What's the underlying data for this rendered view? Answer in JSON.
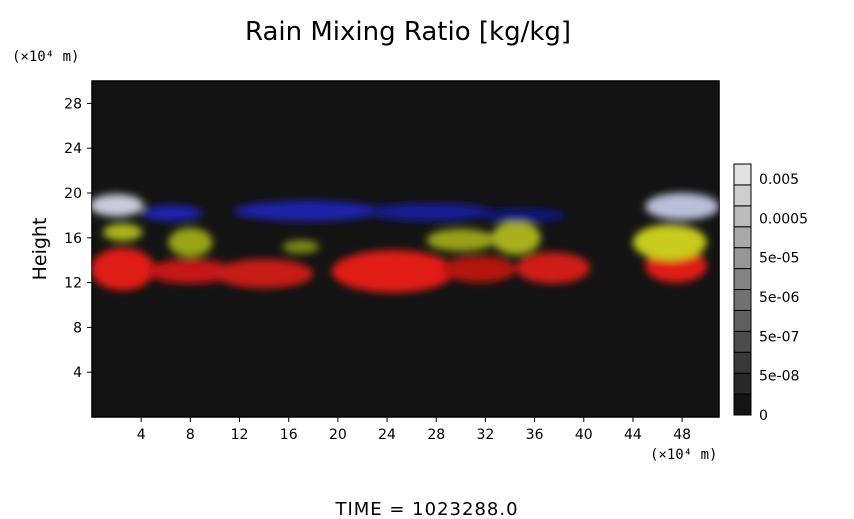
{
  "chart_data": {
    "type": "heatmap",
    "title": "Rain Mixing Ratio [kg/kg]",
    "ylabel": "Height",
    "y_unit": "(×10⁴ m)",
    "x_unit": "(×10⁴ m)",
    "xlim": [
      0,
      51
    ],
    "ylim": [
      0,
      30
    ],
    "x_ticks": [
      4,
      8,
      12,
      16,
      20,
      24,
      28,
      32,
      36,
      40,
      44,
      48
    ],
    "y_ticks": [
      4,
      8,
      12,
      16,
      20,
      24,
      28
    ],
    "background_color": "#131313",
    "colorbar": {
      "labels": [
        "0.005",
        "0.0005",
        "5e-05",
        "5e-06",
        "5e-07",
        "5e-08",
        "0"
      ],
      "label_levels": [
        0.005,
        0.0005,
        5e-05,
        5e-06,
        5e-07,
        5e-08,
        0
      ],
      "steps": 12
    },
    "regions": [
      {
        "x": 2.5,
        "y": 13.2,
        "rx": 2.6,
        "ry": 1.9,
        "color": "#e01a14"
      },
      {
        "x": 8.0,
        "y": 13.0,
        "rx": 3.5,
        "ry": 1.1,
        "color": "#c41812"
      },
      {
        "x": 14.0,
        "y": 12.8,
        "rx": 4.0,
        "ry": 1.3,
        "color": "#c81a14"
      },
      {
        "x": 24.5,
        "y": 13.0,
        "rx": 5.0,
        "ry": 1.9,
        "color": "#e01a14"
      },
      {
        "x": 31.5,
        "y": 13.2,
        "rx": 3.0,
        "ry": 1.2,
        "color": "#b41610"
      },
      {
        "x": 37.5,
        "y": 13.3,
        "rx": 3.0,
        "ry": 1.4,
        "color": "#d01a14"
      },
      {
        "x": 47.5,
        "y": 13.5,
        "rx": 2.5,
        "ry": 1.5,
        "color": "#e01a14"
      },
      {
        "x": 2.5,
        "y": 16.5,
        "rx": 1.6,
        "ry": 0.8,
        "color": "#a8b41a"
      },
      {
        "x": 8.0,
        "y": 15.6,
        "rx": 1.8,
        "ry": 1.3,
        "color": "#98a418"
      },
      {
        "x": 17.0,
        "y": 15.2,
        "rx": 1.5,
        "ry": 0.6,
        "color": "#7a8814"
      },
      {
        "x": 30.0,
        "y": 15.8,
        "rx": 2.8,
        "ry": 1.0,
        "color": "#98a218"
      },
      {
        "x": 34.5,
        "y": 16.0,
        "rx": 2.0,
        "ry": 1.5,
        "color": "#a8b01a"
      },
      {
        "x": 47.0,
        "y": 15.6,
        "rx": 3.0,
        "ry": 1.6,
        "color": "#c8cc1c"
      },
      {
        "x": 2.0,
        "y": 18.9,
        "rx": 2.2,
        "ry": 1.0,
        "color": "#c8ccd8"
      },
      {
        "x": 48.0,
        "y": 18.8,
        "rx": 3.0,
        "ry": 1.2,
        "color": "#b8c0d8"
      },
      {
        "x": 6.5,
        "y": 18.2,
        "rx": 2.5,
        "ry": 0.7,
        "color": "#1a24b0"
      },
      {
        "x": 17.5,
        "y": 18.4,
        "rx": 6.0,
        "ry": 0.9,
        "color": "#1a20a8"
      },
      {
        "x": 27.5,
        "y": 18.3,
        "rx": 5.0,
        "ry": 0.8,
        "color": "#141c94"
      },
      {
        "x": 35.0,
        "y": 18.0,
        "rx": 3.5,
        "ry": 0.6,
        "color": "#111880"
      }
    ]
  },
  "footer": {
    "time_label": "TIME  =  1023288.0"
  }
}
